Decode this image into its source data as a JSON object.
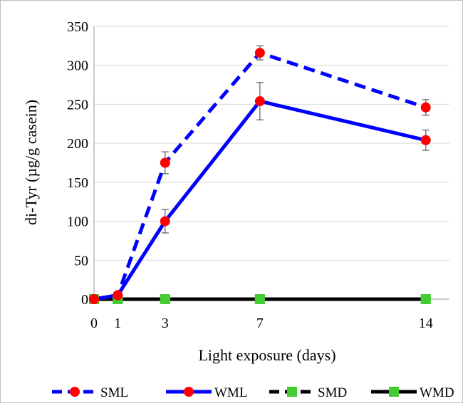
{
  "chart_data": {
    "type": "line",
    "title": "",
    "xlabel": "Light exposure (days)",
    "ylabel": "di-Tyr (µg/g casein)",
    "x": [
      0,
      1,
      3,
      7,
      14
    ],
    "x_ticks": [
      "0",
      "1",
      "3",
      "7",
      "14"
    ],
    "xlim": [
      0,
      15
    ],
    "ylim": [
      0,
      350
    ],
    "y_ticks": [
      "0",
      "50",
      "100",
      "150",
      "200",
      "250",
      "300",
      "350"
    ],
    "grid": "horizontal",
    "legend_position": "bottom",
    "series": [
      {
        "name": "SML",
        "values": [
          0,
          5,
          175,
          316,
          246
        ],
        "errors": [
          0,
          0,
          14,
          9,
          10
        ],
        "line_style": "dashed",
        "marker": "circle",
        "line_color": "#0000ff",
        "marker_color": "#ff0000"
      },
      {
        "name": "WML",
        "values": [
          0,
          5,
          100,
          254,
          204
        ],
        "errors": [
          0,
          0,
          15,
          24,
          13
        ],
        "line_style": "solid",
        "marker": "circle",
        "line_color": "#0000ff",
        "marker_color": "#ff0000"
      },
      {
        "name": "SMD",
        "values": [
          0,
          0,
          0,
          0,
          0
        ],
        "errors": [
          0,
          0,
          0,
          0,
          0
        ],
        "line_style": "dashed",
        "marker": "square",
        "line_color": "#000000",
        "marker_color": "#44cc33"
      },
      {
        "name": "WMD",
        "values": [
          0,
          0,
          0,
          0,
          0
        ],
        "errors": [
          0,
          0,
          0,
          0,
          0
        ],
        "line_style": "solid",
        "marker": "square",
        "line_color": "#000000",
        "marker_color": "#44cc33"
      }
    ]
  }
}
